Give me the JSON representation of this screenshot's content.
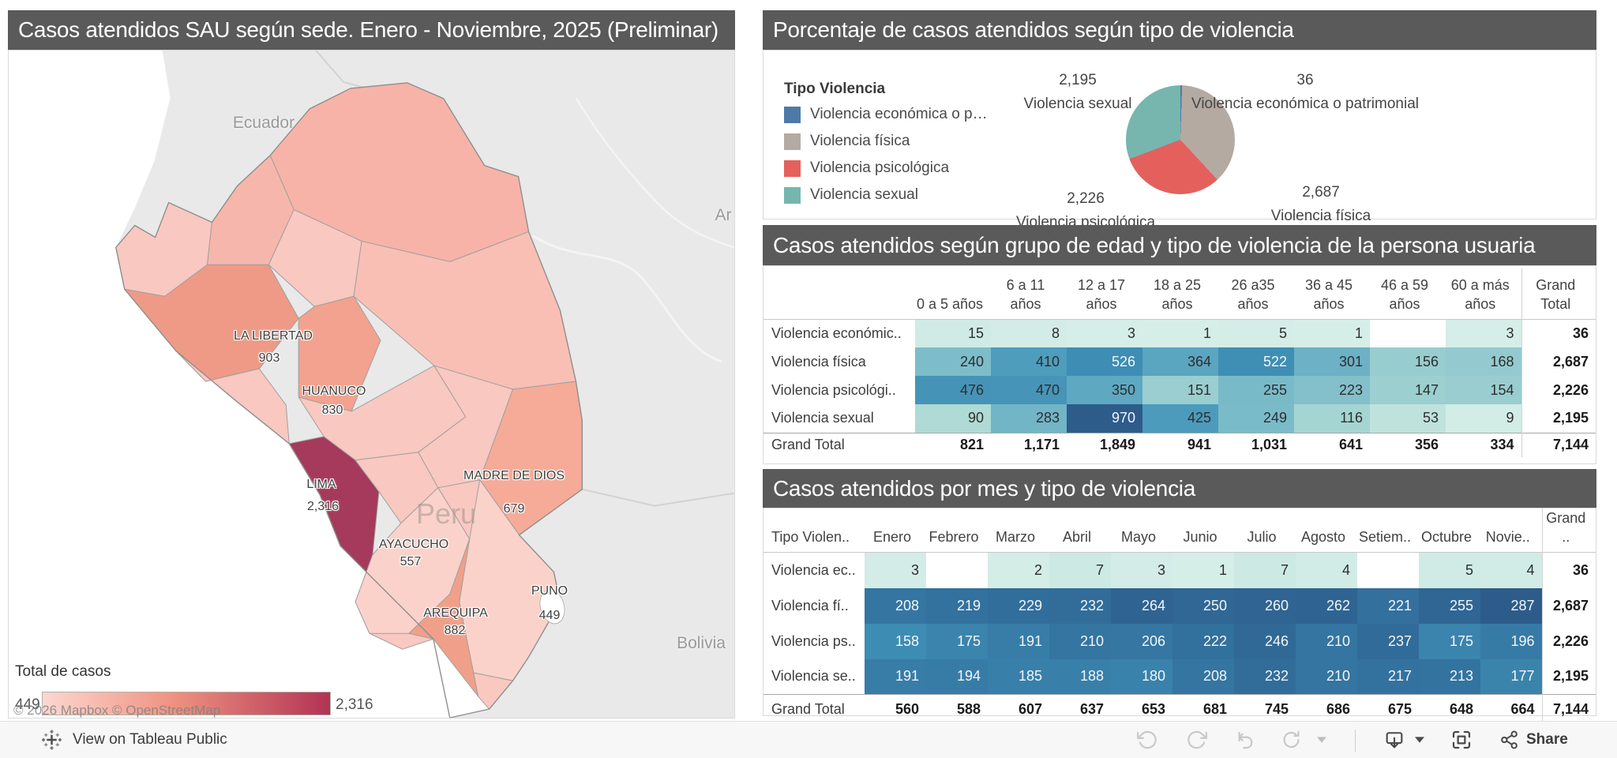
{
  "map_panel": {
    "title": "Casos atendidos SAU según sede. Enero - Noviembre, 2025 (Preliminar)",
    "country_labels": [
      "Ecuador",
      "Bolivia"
    ],
    "partial_label": "Ar",
    "watermark": "Peru",
    "legend": {
      "title": "Total de casos",
      "min": "449",
      "max": "2,316"
    },
    "attribution": "© 2026 Mapbox  © OpenStreetMap"
  },
  "pie_panel": {
    "title": "Porcentaje de casos atendidos según tipo de violencia",
    "legend_title": "Tipo Violencia",
    "legend_items": [
      {
        "label": "Violencia económica o p…",
        "color": "#4e79a7"
      },
      {
        "label": "Violencia física",
        "color": "#b4aaa2"
      },
      {
        "label": "Violencia psicológica",
        "color": "#e4605d"
      },
      {
        "label": "Violencia sexual",
        "color": "#76b6af"
      }
    ]
  },
  "colors": {
    "title_bar": "#5a5a5a",
    "map_gradient": [
      "#fcd7d1",
      "#ef9381",
      "#b23354"
    ],
    "lima_fill": "#a53a5c"
  },
  "chart_data": [
    {
      "type": "choropleth",
      "title": "Casos atendidos SAU según sede. Enero - Noviembre, 2025 (Preliminar)",
      "regions": [
        {
          "name": "LA LIBERTAD",
          "value": 903
        },
        {
          "name": "HUANUCO",
          "value": 830
        },
        {
          "name": "LIMA",
          "value": 2316
        },
        {
          "name": "MADRE DE DIOS",
          "value": 679
        },
        {
          "name": "AYACUCHO",
          "value": 557
        },
        {
          "name": "AREQUIPA",
          "value": 882
        },
        {
          "name": "PUNO",
          "value": 449
        }
      ],
      "legend": {
        "label": "Total de casos",
        "min": 449,
        "max": 2316
      }
    },
    {
      "type": "pie",
      "title": "Porcentaje de casos atendidos según tipo de violencia",
      "legend_title": "Tipo Violencia",
      "start_angle_deg": 0,
      "direction": "clockwise",
      "slices": [
        {
          "label": "Violencia económica o patrimonial",
          "value": 36,
          "color": "#4e79a7"
        },
        {
          "label": "Violencia física",
          "value": 2687,
          "color": "#b4aaa2"
        },
        {
          "label": "Violencia psicológica",
          "value": 2226,
          "color": "#e4605d"
        },
        {
          "label": "Violencia sexual",
          "value": 2195,
          "color": "#76b6af"
        }
      ],
      "total": 7144
    },
    {
      "type": "heatmap",
      "title": "Casos atendidos según grupo de edad y tipo de violencia de la persona usuaria",
      "row_header": "",
      "columns": [
        "0 a 5 años",
        "6 a 11 años",
        "12 a 17 años",
        "18 a 25 años",
        "26 a35 años",
        "36 a 45 años",
        "46 a 59 años",
        "60 a más años"
      ],
      "columns_display": [
        [
          "0 a 5 años"
        ],
        [
          "6 a 11",
          "años"
        ],
        [
          "12 a 17",
          "años"
        ],
        [
          "18 a 25",
          "años"
        ],
        [
          "26 a35",
          "años"
        ],
        [
          "36 a 45",
          "años"
        ],
        [
          "46 a 59",
          "años"
        ],
        [
          "60 a más",
          "años"
        ]
      ],
      "grand_total_label": [
        "Grand",
        "Total"
      ],
      "rows": [
        {
          "label": "Violencia económic..",
          "values": [
            15,
            8,
            3,
            1,
            5,
            1,
            null,
            3
          ],
          "total": 36
        },
        {
          "label": "Violencia física",
          "values": [
            240,
            410,
            526,
            364,
            522,
            301,
            156,
            168
          ],
          "total": 2687
        },
        {
          "label": "Violencia psicológi..",
          "values": [
            476,
            470,
            350,
            151,
            255,
            223,
            147,
            154
          ],
          "total": 2226
        },
        {
          "label": "Violencia sexual",
          "values": [
            90,
            283,
            970,
            425,
            249,
            116,
            53,
            9
          ],
          "total": 2195
        }
      ],
      "grand_total_row": {
        "label": "Grand Total",
        "values": [
          821,
          1171,
          1849,
          941,
          1031,
          641,
          356,
          334
        ],
        "total": 7144
      }
    },
    {
      "type": "heatmap",
      "title": "Casos atendidos por mes y tipo de violencia",
      "row_header": "Tipo Violen..",
      "columns": [
        "Enero",
        "Febrero",
        "Marzo",
        "Abril",
        "Mayo",
        "Junio",
        "Julio",
        "Agosto",
        "Setiem..",
        "Octubre",
        "Novie.."
      ],
      "grand_total_label": "Grand ..",
      "rows": [
        {
          "label": "Violencia ec..",
          "values": [
            3,
            null,
            2,
            7,
            3,
            1,
            7,
            4,
            null,
            5,
            4
          ],
          "total": 36
        },
        {
          "label": "Violencia fí..",
          "values": [
            208,
            219,
            229,
            232,
            264,
            250,
            260,
            262,
            221,
            255,
            287
          ],
          "total": 2687
        },
        {
          "label": "Violencia ps..",
          "values": [
            158,
            175,
            191,
            210,
            206,
            222,
            246,
            210,
            237,
            175,
            196
          ],
          "total": 2226
        },
        {
          "label": "Violencia se..",
          "values": [
            191,
            194,
            185,
            188,
            180,
            208,
            232,
            210,
            217,
            213,
            177
          ],
          "total": 2195
        }
      ],
      "grand_total_row": {
        "label": "Grand Total",
        "values": [
          560,
          588,
          607,
          637,
          653,
          681,
          745,
          686,
          675,
          648,
          664
        ],
        "total": 7144
      }
    }
  ],
  "toolbar": {
    "view_label": "View on Tableau Public",
    "share_label": "Share"
  }
}
